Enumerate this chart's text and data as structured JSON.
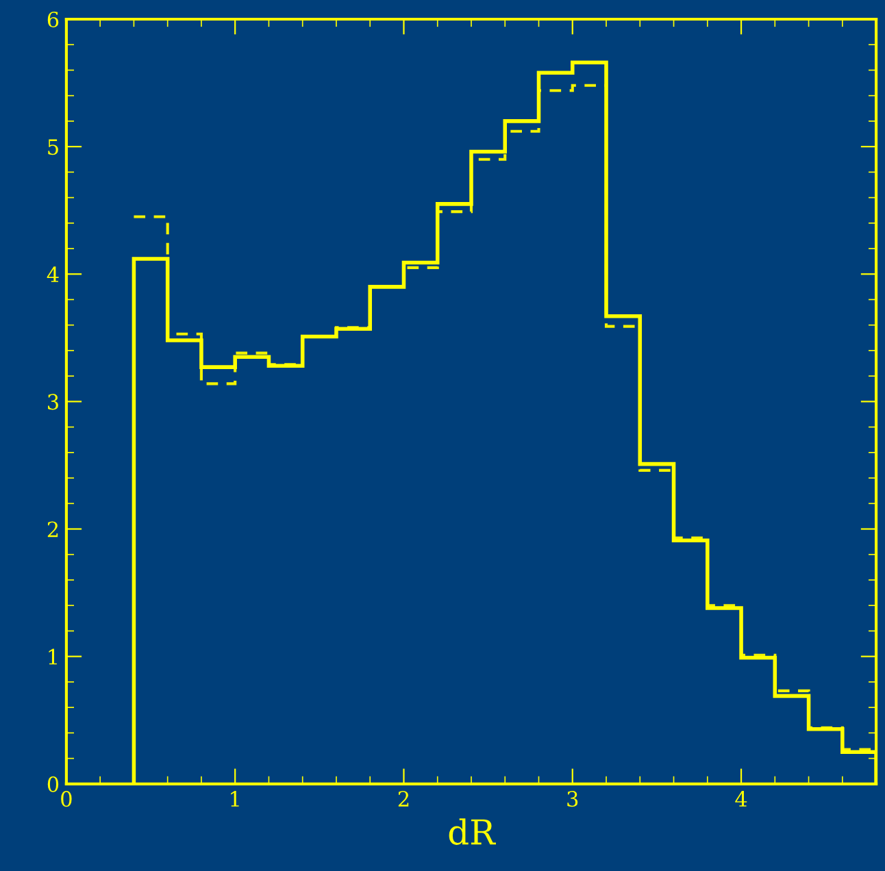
{
  "chart_data": {
    "type": "histogram",
    "xlabel": "dR",
    "bins": [
      0.4,
      0.6,
      0.8,
      1.0,
      1.2,
      1.4,
      1.6,
      1.8,
      2.0,
      2.2,
      2.4,
      2.6,
      2.8,
      3.0,
      3.2,
      3.4,
      3.6,
      3.8,
      4.0,
      4.2,
      4.4,
      4.6,
      4.8
    ],
    "series": [
      {
        "color": "#ffff00",
        "line_style": "solid",
        "values": [
          4.12,
          3.48,
          3.27,
          3.35,
          3.28,
          3.51,
          3.57,
          3.9,
          4.09,
          4.55,
          4.96,
          5.2,
          5.58,
          5.66,
          3.67,
          2.51,
          1.91,
          1.38,
          0.99,
          0.69,
          0.43,
          0.25
        ]
      },
      {
        "color": "#f2f200",
        "line_style": "dashed",
        "values": [
          4.45,
          3.53,
          3.14,
          3.38,
          3.29,
          3.51,
          3.58,
          3.9,
          4.05,
          4.49,
          4.9,
          5.12,
          5.44,
          5.48,
          3.59,
          2.46,
          1.93,
          1.4,
          1.01,
          0.73,
          0.44,
          0.27
        ]
      }
    ],
    "xlim": [
      0,
      4.8
    ],
    "ylim": [
      0,
      6
    ],
    "xticks": [
      0,
      1,
      2,
      3,
      4
    ],
    "yticks": [
      0,
      1,
      2,
      3,
      4,
      5,
      6
    ]
  }
}
